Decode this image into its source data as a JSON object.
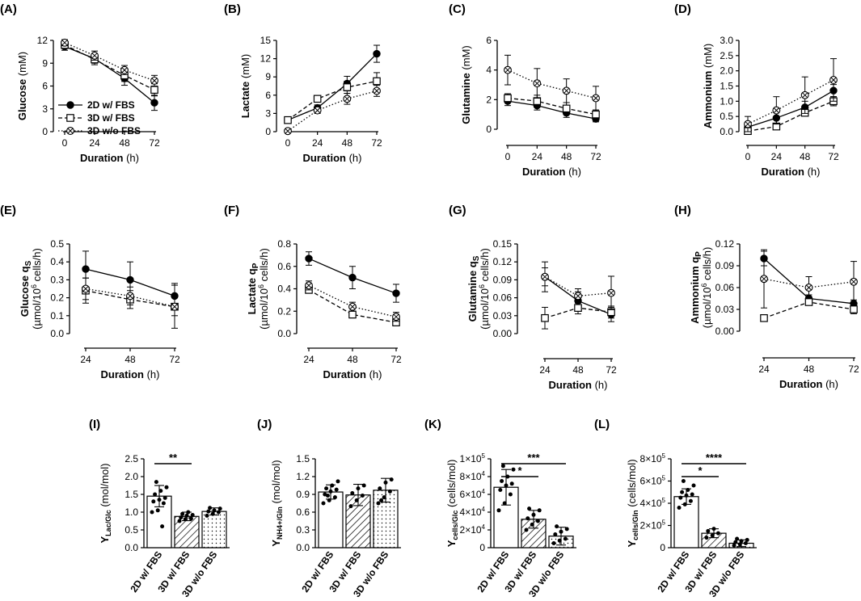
{
  "figure": {
    "colors": {
      "axis": "#000000",
      "fill_open": "#ffffff",
      "fill_solid": "#000000"
    },
    "series_styles": {
      "2D w/ FBS": {
        "line": "solid",
        "marker": "filled-circle"
      },
      "3D w/ FBS": {
        "line": "dashed",
        "marker": "open-square"
      },
      "3D w/o FBS": {
        "line": "dotted",
        "marker": "crossed-circle"
      }
    }
  },
  "chart_data": [
    {
      "type": "line",
      "panel": "(A)",
      "title": "",
      "xlabel_bold": "Duration",
      "xlabel_rest": " (h)",
      "ylabel_bold": "Glucose",
      "ylabel_rest": " (mM)",
      "x": [
        0,
        24,
        48,
        72
      ],
      "xticks": [
        "0",
        "24",
        "48",
        "72"
      ],
      "ylim": [
        0,
        12
      ],
      "yticks": [
        "0",
        "3",
        "6",
        "9",
        "12"
      ],
      "legend": [
        "2D w/ FBS",
        "3D w/ FBS",
        "3D w/o FBS"
      ],
      "legend_position": "bottom-left",
      "series": [
        {
          "name": "2D w/ FBS",
          "values": [
            11.2,
            9.6,
            7.0,
            3.8
          ],
          "err": [
            0.5,
            0.6,
            0.9,
            1.0
          ]
        },
        {
          "name": "3D w/ FBS",
          "values": [
            11.4,
            9.5,
            7.4,
            5.5
          ],
          "err": [
            0.4,
            0.7,
            0.8,
            0.8
          ]
        },
        {
          "name": "3D w/o FBS",
          "values": [
            11.7,
            10.0,
            8.1,
            6.7
          ],
          "err": [
            0.4,
            0.6,
            0.6,
            0.7
          ]
        }
      ]
    },
    {
      "type": "line",
      "panel": "(B)",
      "title": "",
      "xlabel_bold": "Duration",
      "xlabel_rest": " (h)",
      "ylabel_bold": "Lactate",
      "ylabel_rest": " (mM)",
      "x": [
        0,
        24,
        48,
        72
      ],
      "xticks": [
        "0",
        "24",
        "48",
        "72"
      ],
      "ylim": [
        0,
        15
      ],
      "yticks": [
        "0",
        "3",
        "6",
        "9",
        "12",
        "15"
      ],
      "series": [
        {
          "name": "2D w/ FBS",
          "values": [
            1.9,
            3.9,
            7.9,
            12.8
          ],
          "err": [
            0.2,
            0.5,
            1.2,
            1.4
          ]
        },
        {
          "name": "3D w/ FBS",
          "values": [
            1.9,
            5.4,
            7.3,
            8.3
          ],
          "err": [
            0.2,
            0.5,
            1.0,
            1.4
          ]
        },
        {
          "name": "3D w/o FBS",
          "values": [
            0.1,
            3.5,
            5.4,
            6.7
          ],
          "err": [
            0.1,
            0.5,
            0.9,
            0.9
          ]
        }
      ]
    },
    {
      "type": "line",
      "panel": "(C)",
      "title": "",
      "xlabel_bold": "Duration",
      "xlabel_rest": " (h)",
      "ylabel_bold": "Glutamine",
      "ylabel_rest": " (mM)",
      "x": [
        0,
        24,
        48,
        72
      ],
      "xticks": [
        "0",
        "24",
        "48",
        "72"
      ],
      "ylim": [
        0,
        6
      ],
      "yticks": [
        "0",
        "2",
        "4",
        "6"
      ],
      "series": [
        {
          "name": "2D w/ FBS",
          "values": [
            1.9,
            1.6,
            1.1,
            0.7
          ],
          "err": [
            0.3,
            0.3,
            0.3,
            0.2
          ]
        },
        {
          "name": "3D w/ FBS",
          "values": [
            2.1,
            1.9,
            1.4,
            1.0
          ],
          "err": [
            0.3,
            0.4,
            0.4,
            0.3
          ]
        },
        {
          "name": "3D w/o FBS",
          "values": [
            4.0,
            3.1,
            2.6,
            2.1
          ],
          "err": [
            1.0,
            1.0,
            0.8,
            0.8
          ]
        }
      ]
    },
    {
      "type": "line",
      "panel": "(D)",
      "title": "",
      "xlabel_bold": "Duration",
      "xlabel_rest": " (h)",
      "ylabel_bold": "Ammonium",
      "ylabel_rest": " (mM)",
      "x": [
        0,
        24,
        48,
        72
      ],
      "xticks": [
        "0",
        "24",
        "48",
        "72"
      ],
      "ylim": [
        0,
        3.0
      ],
      "yticks": [
        "0.0",
        "0.5",
        "1.0",
        "1.5",
        "2.0",
        "2.5",
        "3.0"
      ],
      "series": [
        {
          "name": "2D w/ FBS",
          "values": [
            0.15,
            0.45,
            0.8,
            1.35
          ],
          "err": [
            0.05,
            0.2,
            0.2,
            0.2
          ]
        },
        {
          "name": "3D w/ FBS",
          "values": [
            0.02,
            0.17,
            0.62,
            1.0
          ],
          "err": [
            0.03,
            0.05,
            0.1,
            0.15
          ]
        },
        {
          "name": "3D w/o FBS",
          "values": [
            0.25,
            0.7,
            1.2,
            1.7
          ],
          "err": [
            0.25,
            0.45,
            0.6,
            0.7
          ]
        }
      ]
    },
    {
      "type": "line",
      "panel": "(E)",
      "title": "",
      "xlabel_bold": "Duration",
      "xlabel_rest": " (h)",
      "ylabel_bold": "Glucose q",
      "ylabel_sub": "S",
      "ylabel_line2_pre": "(µmol/10",
      "ylabel_line2_sup": "6",
      "ylabel_line2_post": " cells/h)",
      "x": [
        24,
        48,
        72
      ],
      "xticks": [
        "24",
        "48",
        "72"
      ],
      "ylim": [
        0,
        0.5
      ],
      "yticks": [
        "0.0",
        "0.1",
        "0.2",
        "0.3",
        "0.4",
        "0.5"
      ],
      "series": [
        {
          "name": "2D w/ FBS",
          "values": [
            0.36,
            0.3,
            0.21
          ],
          "err": [
            0.1,
            0.1,
            0.07
          ]
        },
        {
          "name": "3D w/ FBS",
          "values": [
            0.24,
            0.19,
            0.15
          ],
          "err": [
            0.07,
            0.05,
            0.12
          ]
        },
        {
          "name": "3D w/o FBS",
          "values": [
            0.25,
            0.21,
            0.15
          ],
          "err": [
            0.06,
            0.05,
            0.05
          ]
        }
      ]
    },
    {
      "type": "line",
      "panel": "(F)",
      "title": "",
      "xlabel_bold": "Duration",
      "xlabel_rest": " (h)",
      "ylabel_bold": "Lactate q",
      "ylabel_sub": "P",
      "ylabel_line2_pre": "(µmol/10",
      "ylabel_line2_sup": "6",
      "ylabel_line2_post": " cells/h)",
      "x": [
        24,
        48,
        72
      ],
      "xticks": [
        "24",
        "48",
        "72"
      ],
      "ylim": [
        0,
        0.8
      ],
      "yticks": [
        "0.0",
        "0.2",
        "0.4",
        "0.6",
        "0.8"
      ],
      "series": [
        {
          "name": "2D w/ FBS",
          "values": [
            0.67,
            0.5,
            0.36
          ],
          "err": [
            0.06,
            0.1,
            0.08
          ]
        },
        {
          "name": "3D w/ FBS",
          "values": [
            0.39,
            0.17,
            0.1
          ],
          "err": [
            0.03,
            0.03,
            0.03
          ]
        },
        {
          "name": "3D w/o FBS",
          "values": [
            0.43,
            0.24,
            0.15
          ],
          "err": [
            0.04,
            0.04,
            0.04
          ]
        }
      ]
    },
    {
      "type": "line",
      "panel": "(G)",
      "title": "",
      "xlabel_bold": "Duration",
      "xlabel_rest": " (h)",
      "ylabel_bold": "Glutamine q",
      "ylabel_sub": "S",
      "ylabel_line2_pre": "(µmol/10",
      "ylabel_line2_sup": "6",
      "ylabel_line2_post": " cells/h)",
      "x": [
        24,
        48,
        72
      ],
      "xticks": [
        "24",
        "48",
        "72"
      ],
      "ylim": [
        0,
        0.15
      ],
      "yticks": [
        "0.00",
        "0.03",
        "0.06",
        "0.09",
        "0.12",
        "0.15"
      ],
      "series": [
        {
          "name": "2D w/ FBS",
          "values": [
            0.095,
            0.055,
            0.032
          ],
          "err": [
            0.025,
            0.015,
            0.012
          ]
        },
        {
          "name": "3D w/ FBS",
          "values": [
            0.026,
            0.043,
            0.036
          ],
          "err": [
            0.018,
            0.01,
            0.01
          ]
        },
        {
          "name": "3D w/o FBS",
          "values": [
            0.095,
            0.063,
            0.068
          ],
          "err": [
            0.015,
            0.012,
            0.028
          ]
        }
      ]
    },
    {
      "type": "line",
      "panel": "(H)",
      "title": "",
      "xlabel_bold": "Duration",
      "xlabel_rest": " (h)",
      "ylabel_bold": "Ammonium q",
      "ylabel_sub": "P",
      "ylabel_line2_pre": "(µmol/10",
      "ylabel_line2_sup": "6",
      "ylabel_line2_post": " cells/h)",
      "x": [
        24,
        48,
        72
      ],
      "xticks": [
        "24",
        "48",
        "72"
      ],
      "ylim": [
        0,
        0.12
      ],
      "yticks": [
        "0.00",
        "0.03",
        "0.06",
        "0.09",
        "0.12"
      ],
      "series": [
        {
          "name": "2D w/ FBS",
          "values": [
            0.1,
            0.045,
            0.038
          ],
          "err": [
            0.01,
            0.005,
            0.005
          ]
        },
        {
          "name": "3D w/ FBS",
          "values": [
            0.018,
            0.04,
            0.03
          ],
          "err": [
            0.004,
            0.004,
            0.006
          ]
        },
        {
          "name": "3D w/o FBS",
          "values": [
            0.072,
            0.06,
            0.068
          ],
          "err": [
            0.04,
            0.015,
            0.028
          ]
        }
      ]
    },
    {
      "type": "bar",
      "panel": "(I)",
      "ylabel_main": "Y",
      "ylabel_sub": "Lac/Glc",
      "ylabel_rest": " (mol/mol)",
      "categories": [
        "2D w/ FBS",
        "3D w/ FBS",
        "3D w/o FBS"
      ],
      "patterns": [
        "none",
        "hatch",
        "dots"
      ],
      "values": [
        1.45,
        0.88,
        1.02
      ],
      "err": [
        0.3,
        0.12,
        0.1
      ],
      "ylim": [
        0,
        2.5
      ],
      "yticks": [
        "0.0",
        "0.5",
        "1.0",
        "1.5",
        "2.0",
        "2.5"
      ],
      "points": [
        [
          1.0,
          1.05,
          1.25,
          1.3,
          1.35,
          1.4,
          1.5,
          1.6,
          1.7,
          1.85,
          0.6
        ],
        [
          0.75,
          0.8,
          0.82,
          0.85,
          0.9,
          0.92,
          0.95,
          1.0
        ],
        [
          0.9,
          0.95,
          1.0,
          1.02,
          1.05,
          1.1,
          1.12
        ]
      ],
      "significance": [
        {
          "from": 0,
          "to": 1,
          "label": "**"
        }
      ]
    },
    {
      "type": "bar",
      "panel": "(J)",
      "ylabel_main": "Y",
      "ylabel_sub": "NH4+/Gln",
      "ylabel_rest": " (mol/mol)",
      "categories": [
        "2D w/ FBS",
        "3D w/ FBS",
        "3D w/o FBS"
      ],
      "patterns": [
        "none",
        "hatch",
        "dots"
      ],
      "values": [
        0.94,
        0.89,
        0.97
      ],
      "err": [
        0.12,
        0.18,
        0.2
      ],
      "ylim": [
        0,
        1.5
      ],
      "yticks": [
        "0.0",
        "0.3",
        "0.6",
        "0.9",
        "1.2",
        "1.5"
      ],
      "points": [
        [
          0.75,
          0.8,
          0.85,
          0.9,
          0.95,
          0.98,
          1.0,
          1.05,
          1.12,
          0.88
        ],
        [
          0.7,
          0.8,
          0.88,
          0.92,
          1.0,
          1.05
        ],
        [
          0.75,
          0.85,
          0.95,
          1.0,
          1.1,
          1.15,
          0.8
        ]
      ],
      "significance": []
    },
    {
      "type": "bar",
      "panel": "(K)",
      "ylabel_main": "Y",
      "ylabel_sub": "cells/Glc",
      "ylabel_rest": " (cells/mol)",
      "categories": [
        "2D w/ FBS",
        "3D w/ FBS",
        "3D w/o FBS"
      ],
      "patterns": [
        "none",
        "hatch",
        "dots"
      ],
      "values": [
        68000,
        32000,
        13000
      ],
      "err": [
        20000,
        10000,
        10000
      ],
      "ylim": [
        0,
        100000
      ],
      "yticks": [
        {
          "m": "0",
          "e": ""
        },
        {
          "m": "2×10",
          "e": "4"
        },
        {
          "m": "4×10",
          "e": "4"
        },
        {
          "m": "6×10",
          "e": "4"
        },
        {
          "m": "8×10",
          "e": "4"
        },
        {
          "m": "1×10",
          "e": "5"
        }
      ],
      "points": [
        [
          42000,
          50000,
          60000,
          65000,
          70000,
          72000,
          75000,
          80000,
          88000,
          92000
        ],
        [
          20000,
          26000,
          30000,
          33000,
          37000,
          42000,
          44000
        ],
        [
          5000,
          8000,
          10000,
          15000,
          18000,
          21000,
          24000
        ]
      ],
      "significance": [
        {
          "from": 0,
          "to": 1,
          "label": "*"
        },
        {
          "from": 0,
          "to": 2,
          "label": "***"
        }
      ]
    },
    {
      "type": "bar",
      "panel": "(L)",
      "ylabel_main": "Y",
      "ylabel_sub": "cells/Gln",
      "ylabel_rest": " (cells/mol)",
      "categories": [
        "2D w/ FBS",
        "3D w/ FBS",
        "3D w/o FBS"
      ],
      "patterns": [
        "none",
        "hatch",
        "dots"
      ],
      "values": [
        460000,
        130000,
        40000
      ],
      "err": [
        70000,
        40000,
        30000
      ],
      "ylim": [
        0,
        800000
      ],
      "yticks": [
        {
          "m": "0",
          "e": ""
        },
        {
          "m": "2×10",
          "e": "5"
        },
        {
          "m": "4×10",
          "e": "5"
        },
        {
          "m": "6×10",
          "e": "5"
        },
        {
          "m": "8×10",
          "e": "5"
        }
      ],
      "points": [
        [
          360000,
          390000,
          420000,
          450000,
          470000,
          480000,
          500000,
          520000,
          560000,
          600000
        ],
        [
          90000,
          110000,
          130000,
          150000,
          170000
        ],
        [
          20000,
          30000,
          40000,
          50000,
          60000,
          70000,
          80000
        ]
      ],
      "significance": [
        {
          "from": 0,
          "to": 1,
          "label": "*"
        },
        {
          "from": 0,
          "to": 2,
          "label": "****"
        }
      ]
    }
  ]
}
